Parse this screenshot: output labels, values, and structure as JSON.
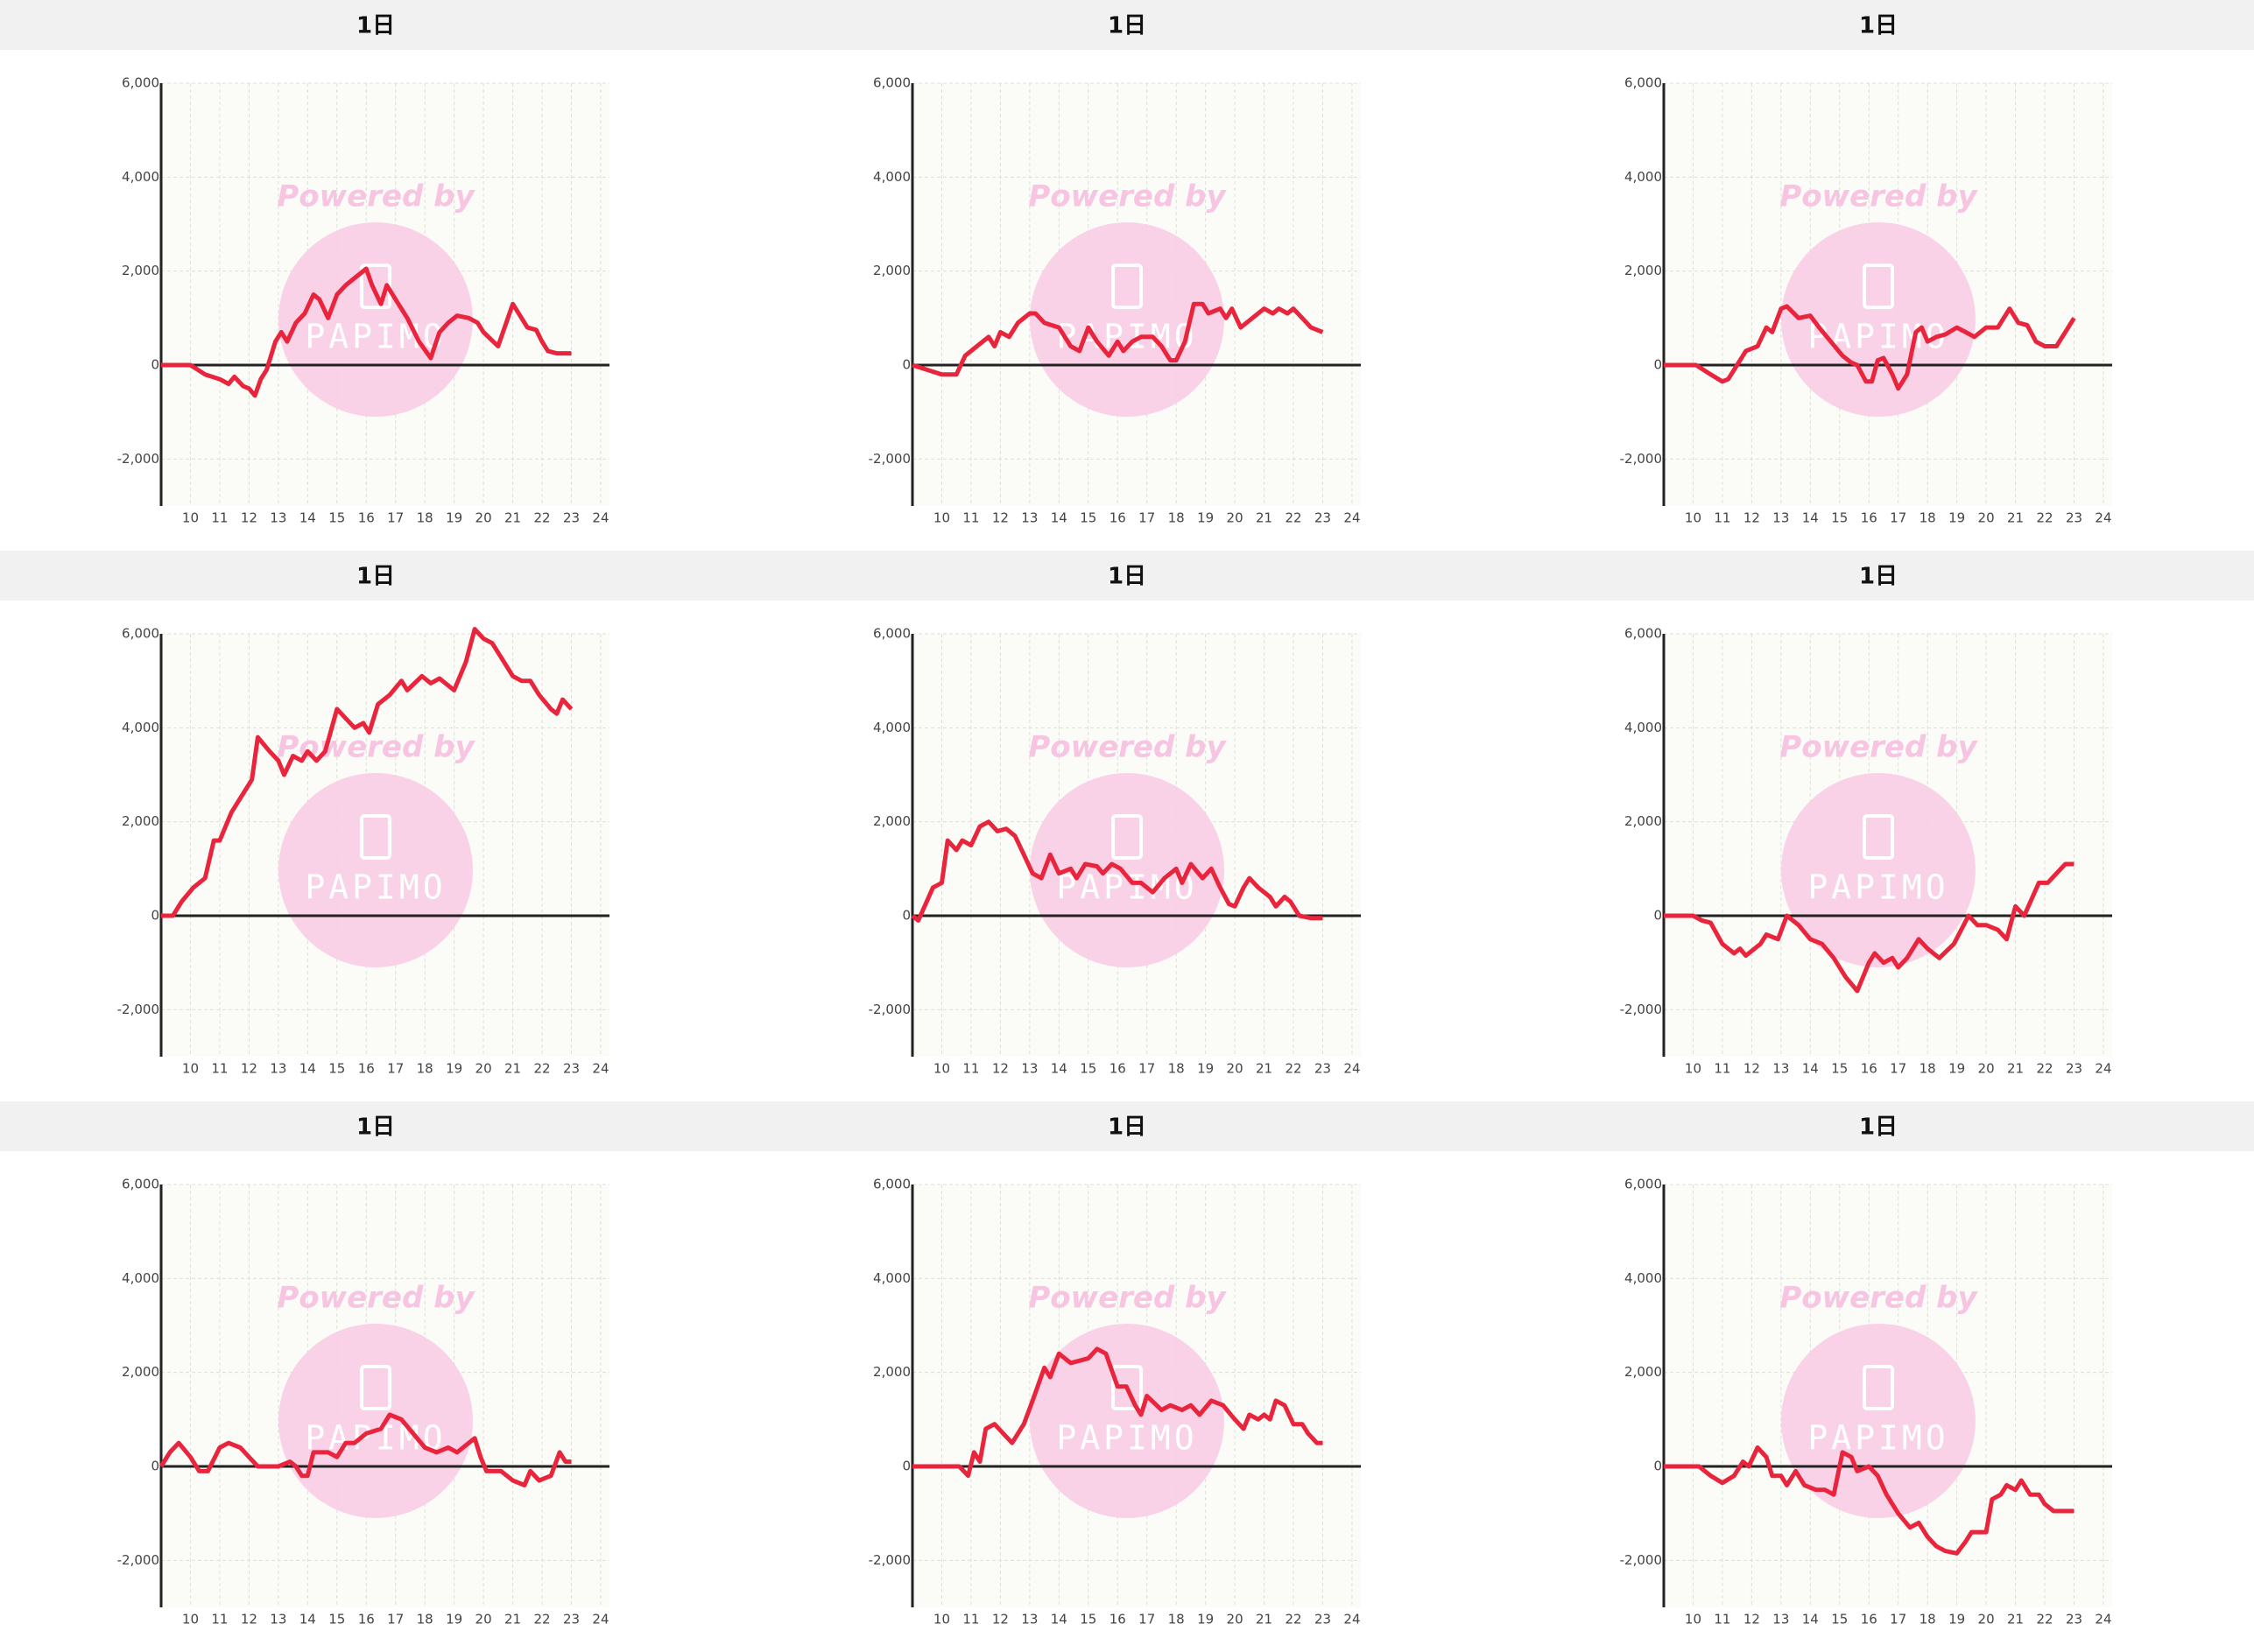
{
  "chart_data": [
    {
      "type": "line",
      "title": "1日",
      "watermark": "Powered by",
      "logo": "PAPIMO",
      "color": "#e8253c",
      "grid": true,
      "xlim": [
        9,
        24.3
      ],
      "ylim": [
        -3000,
        6000
      ],
      "xticks": [
        10,
        11,
        12,
        13,
        14,
        15,
        16,
        17,
        18,
        19,
        20,
        21,
        22,
        23,
        24
      ],
      "yticks": [
        {
          "value": -2000,
          "label": "-2,000"
        },
        0,
        {
          "value": 2000,
          "label": "2,000"
        },
        {
          "value": 4000,
          "label": "4,000"
        },
        {
          "value": 6000,
          "label": "6,000"
        }
      ],
      "x": [
        9,
        10,
        10.5,
        11,
        11.3,
        11.5,
        11.8,
        12,
        12.2,
        12.4,
        12.6,
        12.9,
        13.1,
        13.3,
        13.6,
        13.9,
        14.2,
        14.4,
        14.7,
        15,
        15.3,
        15.7,
        16,
        16.2,
        16.5,
        16.7,
        17,
        17.4,
        17.8,
        18.2,
        18.5,
        18.8,
        19.1,
        19.5,
        19.8,
        20,
        20.5,
        21,
        21.3,
        21.5,
        21.8,
        22,
        22.2,
        22.5,
        23
      ],
      "values": [
        0,
        0,
        -200,
        -300,
        -400,
        -250,
        -450,
        -500,
        -650,
        -300,
        -100,
        500,
        700,
        500,
        900,
        1100,
        1500,
        1400,
        1000,
        1500,
        1700,
        1900,
        2050,
        1700,
        1300,
        1700,
        1400,
        1000,
        500,
        150,
        700,
        900,
        1050,
        1000,
        900,
        700,
        400,
        1300,
        1000,
        800,
        750,
        500,
        300,
        250,
        250
      ]
    },
    {
      "type": "line",
      "title": "1日",
      "watermark": "Powered by",
      "logo": "PAPIMO",
      "color": "#e8253c",
      "grid": true,
      "xlim": [
        9,
        24.3
      ],
      "ylim": [
        -3000,
        6000
      ],
      "xticks": [
        10,
        11,
        12,
        13,
        14,
        15,
        16,
        17,
        18,
        19,
        20,
        21,
        22,
        23,
        24
      ],
      "yticks": [
        {
          "value": -2000,
          "label": "-2,000"
        },
        0,
        {
          "value": 2000,
          "label": "2,000"
        },
        {
          "value": 4000,
          "label": "4,000"
        },
        {
          "value": 6000,
          "label": "6,000"
        }
      ],
      "x": [
        9,
        9.5,
        10,
        10.5,
        10.8,
        11.2,
        11.6,
        11.8,
        12,
        12.3,
        12.6,
        13,
        13.2,
        13.5,
        14,
        14.4,
        14.7,
        15,
        15.3,
        15.7,
        16,
        16.2,
        16.5,
        16.8,
        17.2,
        17.5,
        17.8,
        18,
        18.3,
        18.6,
        18.9,
        19.1,
        19.5,
        19.7,
        19.9,
        20.2,
        20.6,
        21,
        21.3,
        21.5,
        21.8,
        22,
        22.3,
        22.6,
        23
      ],
      "values": [
        0,
        -100,
        -200,
        -200,
        200,
        400,
        600,
        400,
        700,
        600,
        900,
        1100,
        1100,
        900,
        800,
        400,
        300,
        800,
        500,
        200,
        500,
        300,
        500,
        600,
        600,
        400,
        100,
        100,
        500,
        1300,
        1300,
        1100,
        1200,
        1000,
        1200,
        800,
        1000,
        1200,
        1100,
        1200,
        1100,
        1200,
        1000,
        800,
        700
      ]
    },
    {
      "type": "line",
      "title": "1日",
      "watermark": "Powered by",
      "logo": "PAPIMO",
      "color": "#e8253c",
      "grid": true,
      "xlim": [
        9,
        24.3
      ],
      "ylim": [
        -3000,
        6000
      ],
      "xticks": [
        10,
        11,
        12,
        13,
        14,
        15,
        16,
        17,
        18,
        19,
        20,
        21,
        22,
        23,
        24
      ],
      "yticks": [
        {
          "value": -2000,
          "label": "-2,000"
        },
        0,
        {
          "value": 2000,
          "label": "2,000"
        },
        {
          "value": 4000,
          "label": "4,000"
        },
        {
          "value": 6000,
          "label": "6,000"
        }
      ],
      "x": [
        9,
        10.1,
        10.6,
        11,
        11.2,
        11.5,
        11.8,
        12.2,
        12.5,
        12.7,
        13,
        13.2,
        13.6,
        14,
        14.3,
        14.7,
        15.1,
        15.4,
        15.6,
        15.9,
        16.1,
        16.3,
        16.5,
        16.8,
        17,
        17.3,
        17.6,
        17.8,
        18,
        18.3,
        18.6,
        19,
        19.3,
        19.6,
        20,
        20.4,
        20.8,
        21.1,
        21.4,
        21.7,
        22,
        22.4,
        22.7,
        23
      ],
      "values": [
        0,
        0,
        -200,
        -350,
        -300,
        0,
        300,
        400,
        800,
        700,
        1200,
        1250,
        1000,
        1050,
        800,
        500,
        200,
        50,
        0,
        -350,
        -350,
        100,
        150,
        -200,
        -500,
        -200,
        700,
        800,
        500,
        600,
        650,
        800,
        700,
        600,
        800,
        800,
        1200,
        900,
        850,
        500,
        400,
        400,
        700,
        1000
      ]
    },
    {
      "type": "line",
      "title": "1日",
      "watermark": "Powered by",
      "logo": "PAPIMO",
      "color": "#e8253c",
      "grid": true,
      "xlim": [
        9,
        24.3
      ],
      "ylim": [
        -3000,
        6000
      ],
      "xticks": [
        10,
        11,
        12,
        13,
        14,
        15,
        16,
        17,
        18,
        19,
        20,
        21,
        22,
        23,
        24
      ],
      "yticks": [
        {
          "value": -2000,
          "label": "-2,000"
        },
        0,
        {
          "value": 2000,
          "label": "2,000"
        },
        {
          "value": 4000,
          "label": "4,000"
        },
        {
          "value": 6000,
          "label": "6,000"
        }
      ],
      "x": [
        9,
        9.4,
        9.7,
        10.1,
        10.5,
        10.8,
        11,
        11.4,
        11.8,
        12.1,
        12.3,
        12.7,
        13,
        13.2,
        13.5,
        13.8,
        14,
        14.3,
        14.6,
        15,
        15.3,
        15.6,
        15.9,
        16.1,
        16.4,
        16.8,
        17.2,
        17.4,
        17.9,
        18.2,
        18.5,
        19,
        19.4,
        19.7,
        20,
        20.3,
        20.6,
        21,
        21.3,
        21.6,
        21.9,
        22.3,
        22.5,
        22.7,
        23
      ],
      "values": [
        0,
        0,
        300,
        600,
        800,
        1600,
        1600,
        2200,
        2600,
        2900,
        3800,
        3500,
        3300,
        3000,
        3400,
        3300,
        3500,
        3300,
        3500,
        4400,
        4200,
        4000,
        4100,
        3900,
        4500,
        4700,
        5000,
        4800,
        5100,
        4950,
        5050,
        4800,
        5400,
        6100,
        5900,
        5800,
        5500,
        5100,
        5000,
        5000,
        4700,
        4400,
        4300,
        4600,
        4400
      ]
    },
    {
      "type": "line",
      "title": "1日",
      "watermark": "Powered by",
      "logo": "PAPIMO",
      "color": "#e8253c",
      "grid": true,
      "xlim": [
        9,
        24.3
      ],
      "ylim": [
        -3000,
        6000
      ],
      "xticks": [
        10,
        11,
        12,
        13,
        14,
        15,
        16,
        17,
        18,
        19,
        20,
        21,
        22,
        23,
        24
      ],
      "yticks": [
        {
          "value": -2000,
          "label": "-2,000"
        },
        0,
        {
          "value": 2000,
          "label": "2,000"
        },
        {
          "value": 4000,
          "label": "4,000"
        },
        {
          "value": 6000,
          "label": "6,000"
        }
      ],
      "x": [
        9,
        9.2,
        9.7,
        10,
        10.2,
        10.5,
        10.7,
        11,
        11.3,
        11.6,
        11.9,
        12.2,
        12.5,
        12.8,
        13.1,
        13.4,
        13.7,
        14,
        14.4,
        14.6,
        14.9,
        15.3,
        15.5,
        15.8,
        16.1,
        16.5,
        16.8,
        17.2,
        17.6,
        18,
        18.2,
        18.5,
        18.9,
        19.2,
        19.5,
        19.8,
        20,
        20.3,
        20.5,
        20.8,
        21.2,
        21.4,
        21.7,
        21.9,
        22.2,
        22.6,
        23
      ],
      "values": [
        0,
        -100,
        600,
        700,
        1600,
        1400,
        1600,
        1500,
        1900,
        2000,
        1800,
        1850,
        1700,
        1300,
        900,
        800,
        1300,
        900,
        1000,
        800,
        1100,
        1050,
        900,
        1100,
        1000,
        700,
        700,
        500,
        800,
        1000,
        700,
        1100,
        800,
        1000,
        600,
        250,
        200,
        600,
        800,
        600,
        400,
        200,
        400,
        300,
        0,
        -50,
        -50
      ]
    },
    {
      "type": "line",
      "title": "1日",
      "watermark": "Powered by",
      "logo": "PAPIMO",
      "color": "#e8253c",
      "grid": true,
      "xlim": [
        9,
        24.3
      ],
      "ylim": [
        -3000,
        6000
      ],
      "xticks": [
        10,
        11,
        12,
        13,
        14,
        15,
        16,
        17,
        18,
        19,
        20,
        21,
        22,
        23,
        24
      ],
      "yticks": [
        {
          "value": -2000,
          "label": "-2,000"
        },
        0,
        {
          "value": 2000,
          "label": "2,000"
        },
        {
          "value": 4000,
          "label": "4,000"
        },
        {
          "value": 6000,
          "label": "6,000"
        }
      ],
      "x": [
        9,
        10,
        10.3,
        10.6,
        11,
        11.4,
        11.6,
        11.8,
        12.1,
        12.3,
        12.5,
        12.9,
        13.2,
        13.6,
        14,
        14.4,
        14.8,
        15.2,
        15.6,
        16,
        16.2,
        16.5,
        16.8,
        17,
        17.3,
        17.7,
        18,
        18.4,
        18.9,
        19.4,
        19.7,
        20,
        20.4,
        20.7,
        21,
        21.3,
        21.8,
        22.1,
        22.4,
        22.7,
        23
      ],
      "values": [
        0,
        0,
        -100,
        -150,
        -600,
        -800,
        -700,
        -850,
        -700,
        -600,
        -400,
        -500,
        0,
        -200,
        -500,
        -600,
        -900,
        -1300,
        -1600,
        -1000,
        -800,
        -1000,
        -900,
        -1100,
        -900,
        -500,
        -700,
        -900,
        -600,
        0,
        -200,
        -200,
        -300,
        -500,
        200,
        0,
        700,
        700,
        900,
        1100,
        1100
      ]
    },
    {
      "type": "line",
      "title": "1日",
      "watermark": "Powered by",
      "logo": "PAPIMO",
      "color": "#e8253c",
      "grid": true,
      "xlim": [
        9,
        24.3
      ],
      "ylim": [
        -3000,
        6000
      ],
      "xticks": [
        10,
        11,
        12,
        13,
        14,
        15,
        16,
        17,
        18,
        19,
        20,
        21,
        22,
        23,
        24
      ],
      "yticks": [
        {
          "value": -2000,
          "label": "-2,000"
        },
        0,
        {
          "value": 2000,
          "label": "2,000"
        },
        {
          "value": 4000,
          "label": "4,000"
        },
        {
          "value": 6000,
          "label": "6,000"
        }
      ],
      "x": [
        9,
        9.3,
        9.6,
        10,
        10.3,
        10.6,
        11,
        11.3,
        11.7,
        12,
        12.3,
        13,
        13.4,
        13.6,
        13.8,
        14,
        14.2,
        14.7,
        15,
        15.3,
        15.6,
        16,
        16.5,
        16.8,
        17.2,
        17.6,
        18,
        18.4,
        18.8,
        19.1,
        19.5,
        19.7,
        19.9,
        20.1,
        20.6,
        21,
        21.4,
        21.6,
        21.9,
        22.3,
        22.6,
        22.8,
        23
      ],
      "values": [
        0,
        300,
        500,
        200,
        -100,
        -100,
        400,
        500,
        400,
        200,
        0,
        0,
        100,
        0,
        -200,
        -200,
        300,
        300,
        200,
        500,
        500,
        700,
        800,
        1100,
        1000,
        700,
        400,
        300,
        400,
        300,
        500,
        600,
        200,
        -100,
        -100,
        -300,
        -400,
        -100,
        -300,
        -200,
        300,
        100,
        100
      ]
    },
    {
      "type": "line",
      "title": "1日",
      "watermark": "Powered by",
      "logo": "PAPIMO",
      "color": "#e8253c",
      "grid": true,
      "xlim": [
        9,
        24.3
      ],
      "ylim": [
        -3000,
        6000
      ],
      "xticks": [
        10,
        11,
        12,
        13,
        14,
        15,
        16,
        17,
        18,
        19,
        20,
        21,
        22,
        23,
        24
      ],
      "yticks": [
        {
          "value": -2000,
          "label": "-2,000"
        },
        0,
        {
          "value": 2000,
          "label": "2,000"
        },
        {
          "value": 4000,
          "label": "4,000"
        },
        {
          "value": 6000,
          "label": "6,000"
        }
      ],
      "x": [
        9,
        10.6,
        10.9,
        11.1,
        11.3,
        11.5,
        11.8,
        12.1,
        12.4,
        12.8,
        13.1,
        13.5,
        13.7,
        14,
        14.4,
        15,
        15.3,
        15.6,
        16,
        16.3,
        16.6,
        16.8,
        17,
        17.5,
        17.8,
        18.2,
        18.5,
        18.8,
        19.2,
        19.6,
        20,
        20.3,
        20.5,
        20.8,
        21,
        21.2,
        21.4,
        21.7,
        22,
        22.3,
        22.5,
        22.8,
        23
      ],
      "values": [
        0,
        0,
        -200,
        300,
        100,
        800,
        900,
        700,
        500,
        900,
        1400,
        2100,
        1900,
        2400,
        2200,
        2300,
        2500,
        2400,
        1700,
        1700,
        1300,
        1100,
        1500,
        1200,
        1300,
        1200,
        1300,
        1100,
        1400,
        1300,
        1000,
        800,
        1100,
        1000,
        1100,
        1000,
        1400,
        1300,
        900,
        900,
        700,
        500,
        500
      ]
    },
    {
      "type": "line",
      "title": "1日",
      "watermark": "Powered by",
      "logo": "PAPIMO",
      "color": "#e8253c",
      "grid": true,
      "xlim": [
        9,
        24.3
      ],
      "ylim": [
        -3000,
        6000
      ],
      "xticks": [
        10,
        11,
        12,
        13,
        14,
        15,
        16,
        17,
        18,
        19,
        20,
        21,
        22,
        23,
        24
      ],
      "yticks": [
        {
          "value": -2000,
          "label": "-2,000"
        },
        0,
        {
          "value": 2000,
          "label": "2,000"
        },
        {
          "value": 4000,
          "label": "4,000"
        },
        {
          "value": 6000,
          "label": "6,000"
        }
      ],
      "x": [
        9,
        10.2,
        10.6,
        11,
        11.4,
        11.7,
        11.9,
        12.2,
        12.5,
        12.7,
        13,
        13.2,
        13.5,
        13.8,
        14.2,
        14.5,
        14.8,
        15.1,
        15.4,
        15.6,
        16,
        16.3,
        16.6,
        17,
        17.4,
        17.7,
        18,
        18.3,
        18.6,
        19,
        19.3,
        19.5,
        20,
        20.2,
        20.5,
        20.7,
        21,
        21.2,
        21.5,
        21.8,
        22,
        22.3,
        23
      ],
      "values": [
        0,
        0,
        -200,
        -350,
        -200,
        100,
        0,
        400,
        200,
        -200,
        -200,
        -400,
        -100,
        -400,
        -500,
        -500,
        -600,
        300,
        200,
        -100,
        0,
        -200,
        -600,
        -1000,
        -1300,
        -1200,
        -1500,
        -1700,
        -1800,
        -1850,
        -1600,
        -1400,
        -1400,
        -700,
        -600,
        -400,
        -500,
        -300,
        -600,
        -600,
        -800,
        -950,
        -950
      ]
    }
  ]
}
